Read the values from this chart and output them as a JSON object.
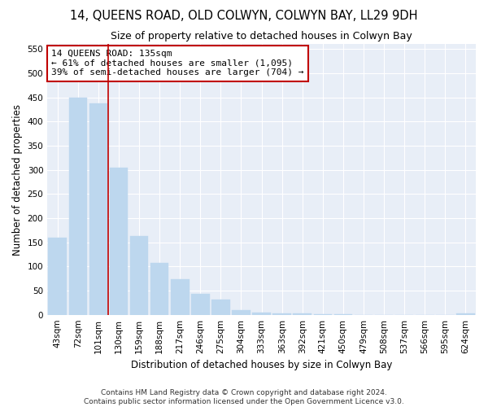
{
  "title": "14, QUEENS ROAD, OLD COLWYN, COLWYN BAY, LL29 9DH",
  "subtitle": "Size of property relative to detached houses in Colwyn Bay",
  "xlabel": "Distribution of detached houses by size in Colwyn Bay",
  "ylabel": "Number of detached properties",
  "categories": [
    "43sqm",
    "72sqm",
    "101sqm",
    "130sqm",
    "159sqm",
    "188sqm",
    "217sqm",
    "246sqm",
    "275sqm",
    "304sqm",
    "333sqm",
    "363sqm",
    "392sqm",
    "421sqm",
    "450sqm",
    "479sqm",
    "508sqm",
    "537sqm",
    "566sqm",
    "595sqm",
    "624sqm"
  ],
  "values": [
    160,
    450,
    437,
    305,
    163,
    107,
    74,
    43,
    32,
    10,
    5,
    3,
    2,
    1,
    1,
    0,
    0,
    0,
    0,
    0,
    2
  ],
  "bar_color_normal": "#bdd7ee",
  "bar_color_edge": "#9bbcd8",
  "annotation_box_color": "#c00000",
  "annotation_box_facecolor": "white",
  "annotation_line1": "14 QUEENS ROAD: 135sqm",
  "annotation_line2": "← 61% of detached houses are smaller (1,095)",
  "annotation_line3": "39% of semi-detached houses are larger (704) →",
  "vline_index": 3,
  "ylim": [
    0,
    560
  ],
  "yticks": [
    0,
    50,
    100,
    150,
    200,
    250,
    300,
    350,
    400,
    450,
    500,
    550
  ],
  "footer_line1": "Contains HM Land Registry data © Crown copyright and database right 2024.",
  "footer_line2": "Contains public sector information licensed under the Open Government Licence v3.0.",
  "bg_color": "#e8eef7",
  "title_fontsize": 10.5,
  "subtitle_fontsize": 9,
  "tick_fontsize": 7.5,
  "label_fontsize": 8.5,
  "annotation_fontsize": 8,
  "footer_fontsize": 6.5
}
